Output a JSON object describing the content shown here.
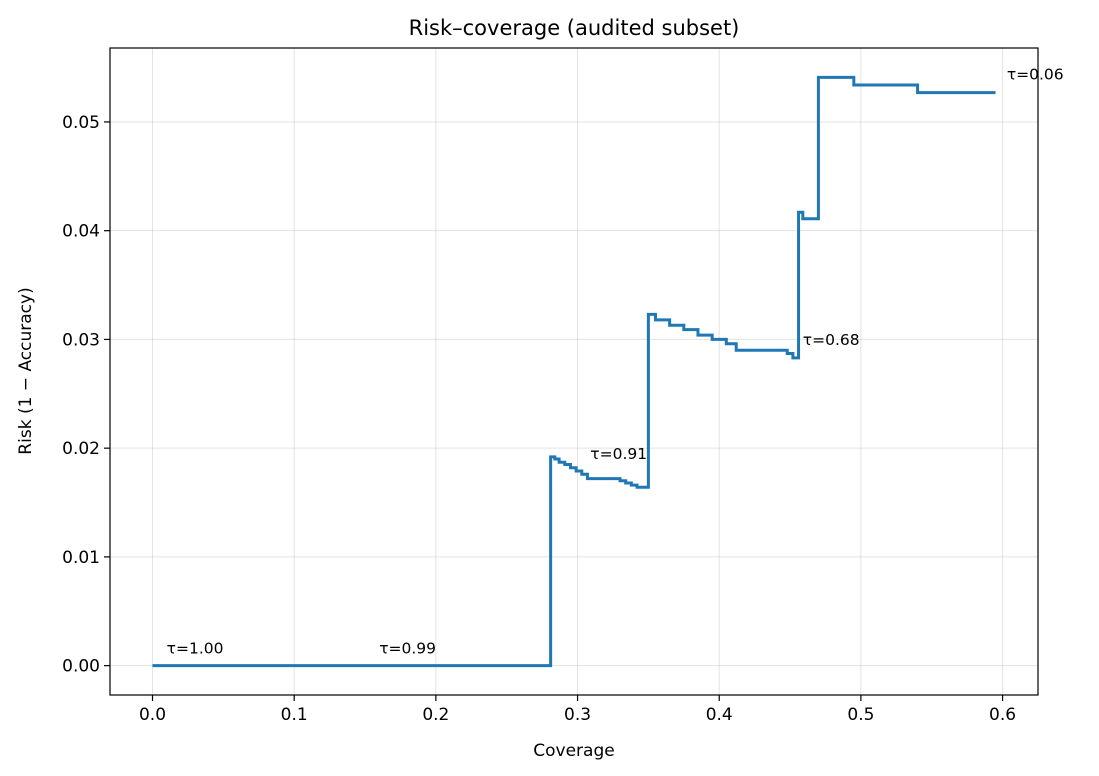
{
  "chart_data": {
    "type": "line",
    "title": "Risk–coverage (audited subset)",
    "xlabel": "Coverage",
    "ylabel": "Risk (1 − Accuracy)",
    "xlim": [
      -0.03,
      0.625
    ],
    "ylim": [
      -0.0027,
      0.0568
    ],
    "xticks": [
      0.0,
      0.1,
      0.2,
      0.3,
      0.4,
      0.5,
      0.6
    ],
    "xtick_labels": [
      "0.0",
      "0.1",
      "0.2",
      "0.3",
      "0.4",
      "0.5",
      "0.6"
    ],
    "yticks": [
      0.0,
      0.01,
      0.02,
      0.03,
      0.04,
      0.05
    ],
    "ytick_labels": [
      "0.00",
      "0.01",
      "0.02",
      "0.03",
      "0.04",
      "0.05"
    ],
    "grid": true,
    "color": "#1f77b4",
    "series": [
      {
        "step": "post",
        "x": [
          0.0,
          0.281,
          0.284,
          0.287,
          0.291,
          0.295,
          0.299,
          0.303,
          0.307,
          0.33,
          0.334,
          0.338,
          0.342,
          0.35,
          0.355,
          0.365,
          0.375,
          0.385,
          0.395,
          0.405,
          0.412,
          0.448,
          0.452,
          0.456,
          0.459,
          0.466,
          0.47,
          0.495,
          0.54,
          0.595
        ],
        "y": [
          0.0,
          0.0192,
          0.019,
          0.0187,
          0.0185,
          0.0182,
          0.0179,
          0.0176,
          0.0172,
          0.017,
          0.0168,
          0.0166,
          0.0164,
          0.0323,
          0.0318,
          0.0313,
          0.0309,
          0.0304,
          0.03,
          0.0296,
          0.029,
          0.0287,
          0.0283,
          0.0417,
          0.0411,
          0.0411,
          0.0541,
          0.0534,
          0.0527,
          0.0527
        ]
      }
    ],
    "annotations": [
      {
        "text": "τ=1.00",
        "x": 0.01,
        "y": 0.0011
      },
      {
        "text": "τ=0.99",
        "x": 0.16,
        "y": 0.0011
      },
      {
        "text": "τ=0.91",
        "x": 0.309,
        "y": 0.019
      },
      {
        "text": "τ=0.68",
        "x": 0.459,
        "y": 0.0295
      },
      {
        "text": "τ=0.06",
        "x": 0.603,
        "y": 0.0539
      }
    ]
  }
}
